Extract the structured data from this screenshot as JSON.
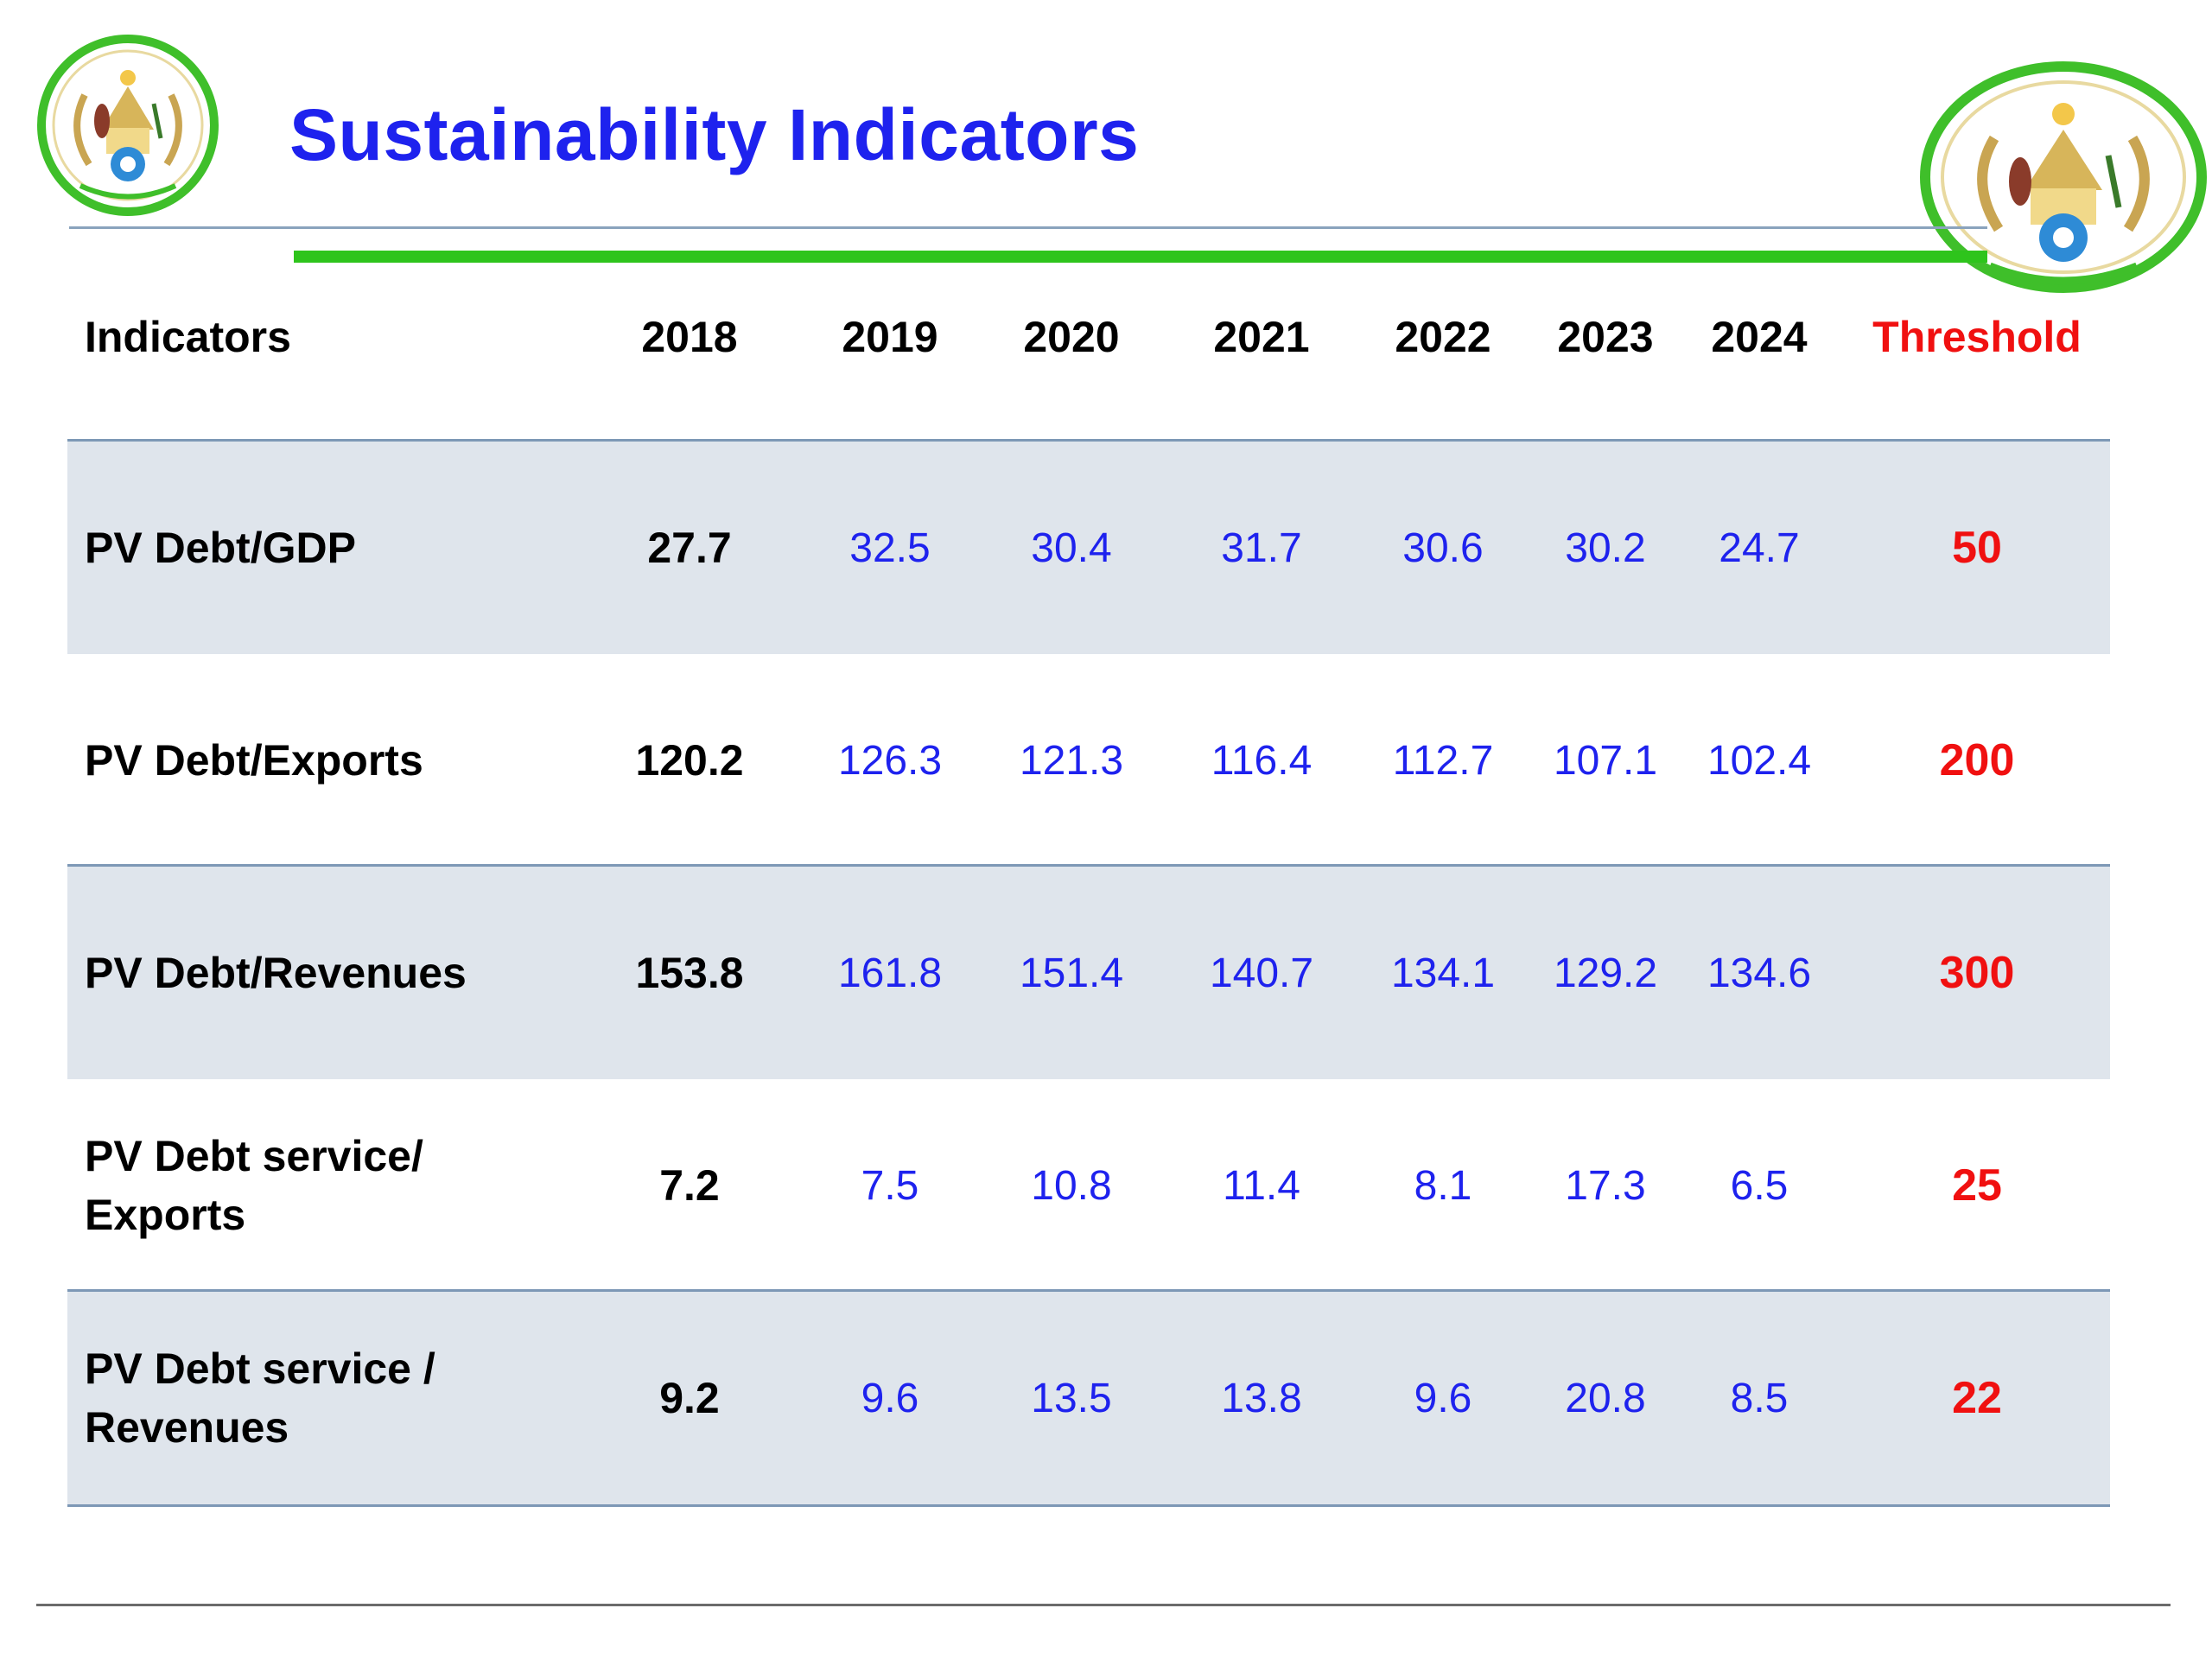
{
  "slide": {
    "title": "Sustainability Indicators"
  },
  "colors": {
    "title": "#1e22ee",
    "projection_values": "#1e22ee",
    "threshold": "#f01010",
    "accent_rule": "#2ec41c",
    "row_shading": "#dfe5ec"
  },
  "emblems": {
    "left": "rwanda-coat-of-arms-icon",
    "right": "rwanda-coat-of-arms-icon"
  },
  "table": {
    "headers": [
      "Indicators",
      "2018",
      "2019",
      "2020",
      "2021",
      "2022",
      "2023",
      "2024",
      "Threshold"
    ],
    "rows": [
      {
        "label": "PV Debt/GDP",
        "values": [
          "27.7",
          "32.5",
          "30.4",
          "31.7",
          "30.6",
          "30.2",
          "24.7"
        ],
        "threshold": "50"
      },
      {
        "label": "PV Debt/Exports",
        "values": [
          "120.2",
          "126.3",
          "121.3",
          "116.4",
          "112.7",
          "107.1",
          "102.4"
        ],
        "threshold": "200"
      },
      {
        "label": "PV Debt/Revenues",
        "values": [
          "153.8",
          "161.8",
          "151.4",
          "140.7",
          "134.1",
          "129.2",
          "134.6"
        ],
        "threshold": "300"
      },
      {
        "label": "PV Debt service/ Exports",
        "values": [
          "7.2",
          "7.5",
          "10.8",
          "11.4",
          "8.1",
          "17.3",
          "6.5"
        ],
        "threshold": "25"
      },
      {
        "label": "PV Debt service / Revenues",
        "values": [
          "9.2",
          "9.6",
          "13.5",
          "13.8",
          "9.6",
          "20.8",
          "8.5"
        ],
        "threshold": "22"
      }
    ]
  }
}
